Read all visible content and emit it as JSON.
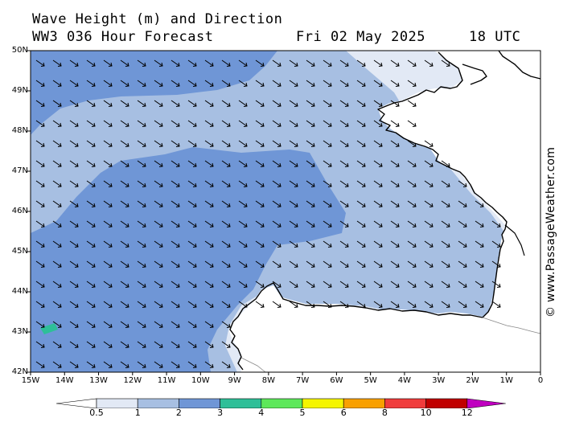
{
  "header": {
    "title_line1": "Wave Height (m) and Direction",
    "title_line2": "WW3 036 Hour Forecast",
    "date": "Fri 02 May 2025",
    "time": "18 UTC"
  },
  "credit": "© www.PassageWeather.com",
  "map": {
    "lat_labels": [
      "50N",
      "49N",
      "48N",
      "47N",
      "46N",
      "45N",
      "44N",
      "43N",
      "42N"
    ],
    "lon_labels": [
      "15W",
      "14W",
      "13W",
      "12W",
      "11W",
      "10W",
      "9W",
      "8W",
      "7W",
      "6W",
      "5W",
      "4W",
      "3W",
      "2W",
      "1W",
      "0"
    ],
    "colors": {
      "sea_low": "#e2e9f5",
      "sea_mid": "#a7bfe2",
      "sea_high": "#6f96d6",
      "land": "#ffffff",
      "coast": "#000000",
      "arrow": "#000000"
    }
  },
  "legend": {
    "labels": [
      "0.5",
      "1",
      "2",
      "3",
      "4",
      "5",
      "6",
      "8",
      "10",
      "12"
    ],
    "colors": [
      "#ffffff",
      "#e2e9f5",
      "#a7bfe2",
      "#6f96d6",
      "#2ebf98",
      "#5de85a",
      "#f5f500",
      "#f9a000",
      "#f03c3c",
      "#c00000",
      "#c000c0"
    ]
  }
}
